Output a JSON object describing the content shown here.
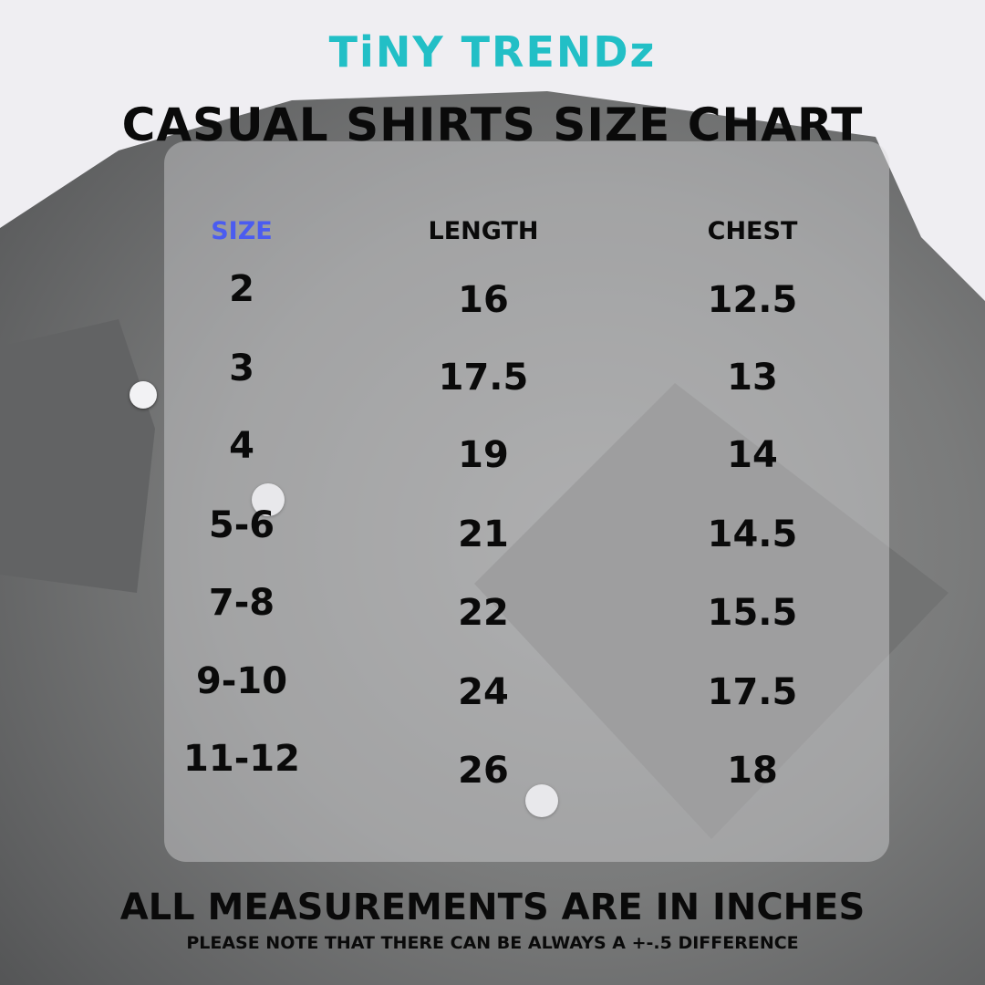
{
  "brand": {
    "logo": "TiNY TRENDz",
    "logo_color": "#22bfc6",
    "heart_color": "#e96aa8"
  },
  "title": "CASUAL SHIRTS SIZE CHART",
  "table": {
    "headers": [
      "SIZE",
      "LENGTH",
      "CHEST"
    ],
    "header_size_color": "#4b5cf0",
    "rows": [
      [
        "2",
        "16",
        "12.5"
      ],
      [
        "3",
        "17.5",
        "13"
      ],
      [
        "4",
        "19",
        "14"
      ],
      [
        "5-6",
        "21",
        "14.5"
      ],
      [
        "7-8",
        "22",
        "15.5"
      ],
      [
        "9-10",
        "24",
        "17.5"
      ],
      [
        "11-12",
        "26",
        "18"
      ]
    ]
  },
  "footer": {
    "units": "ALL MEASUREMENTS ARE IN INCHES",
    "note": "PLEASE NOTE THAT THERE CAN BE ALWAYS A +-.5 DIFFERENCE"
  }
}
